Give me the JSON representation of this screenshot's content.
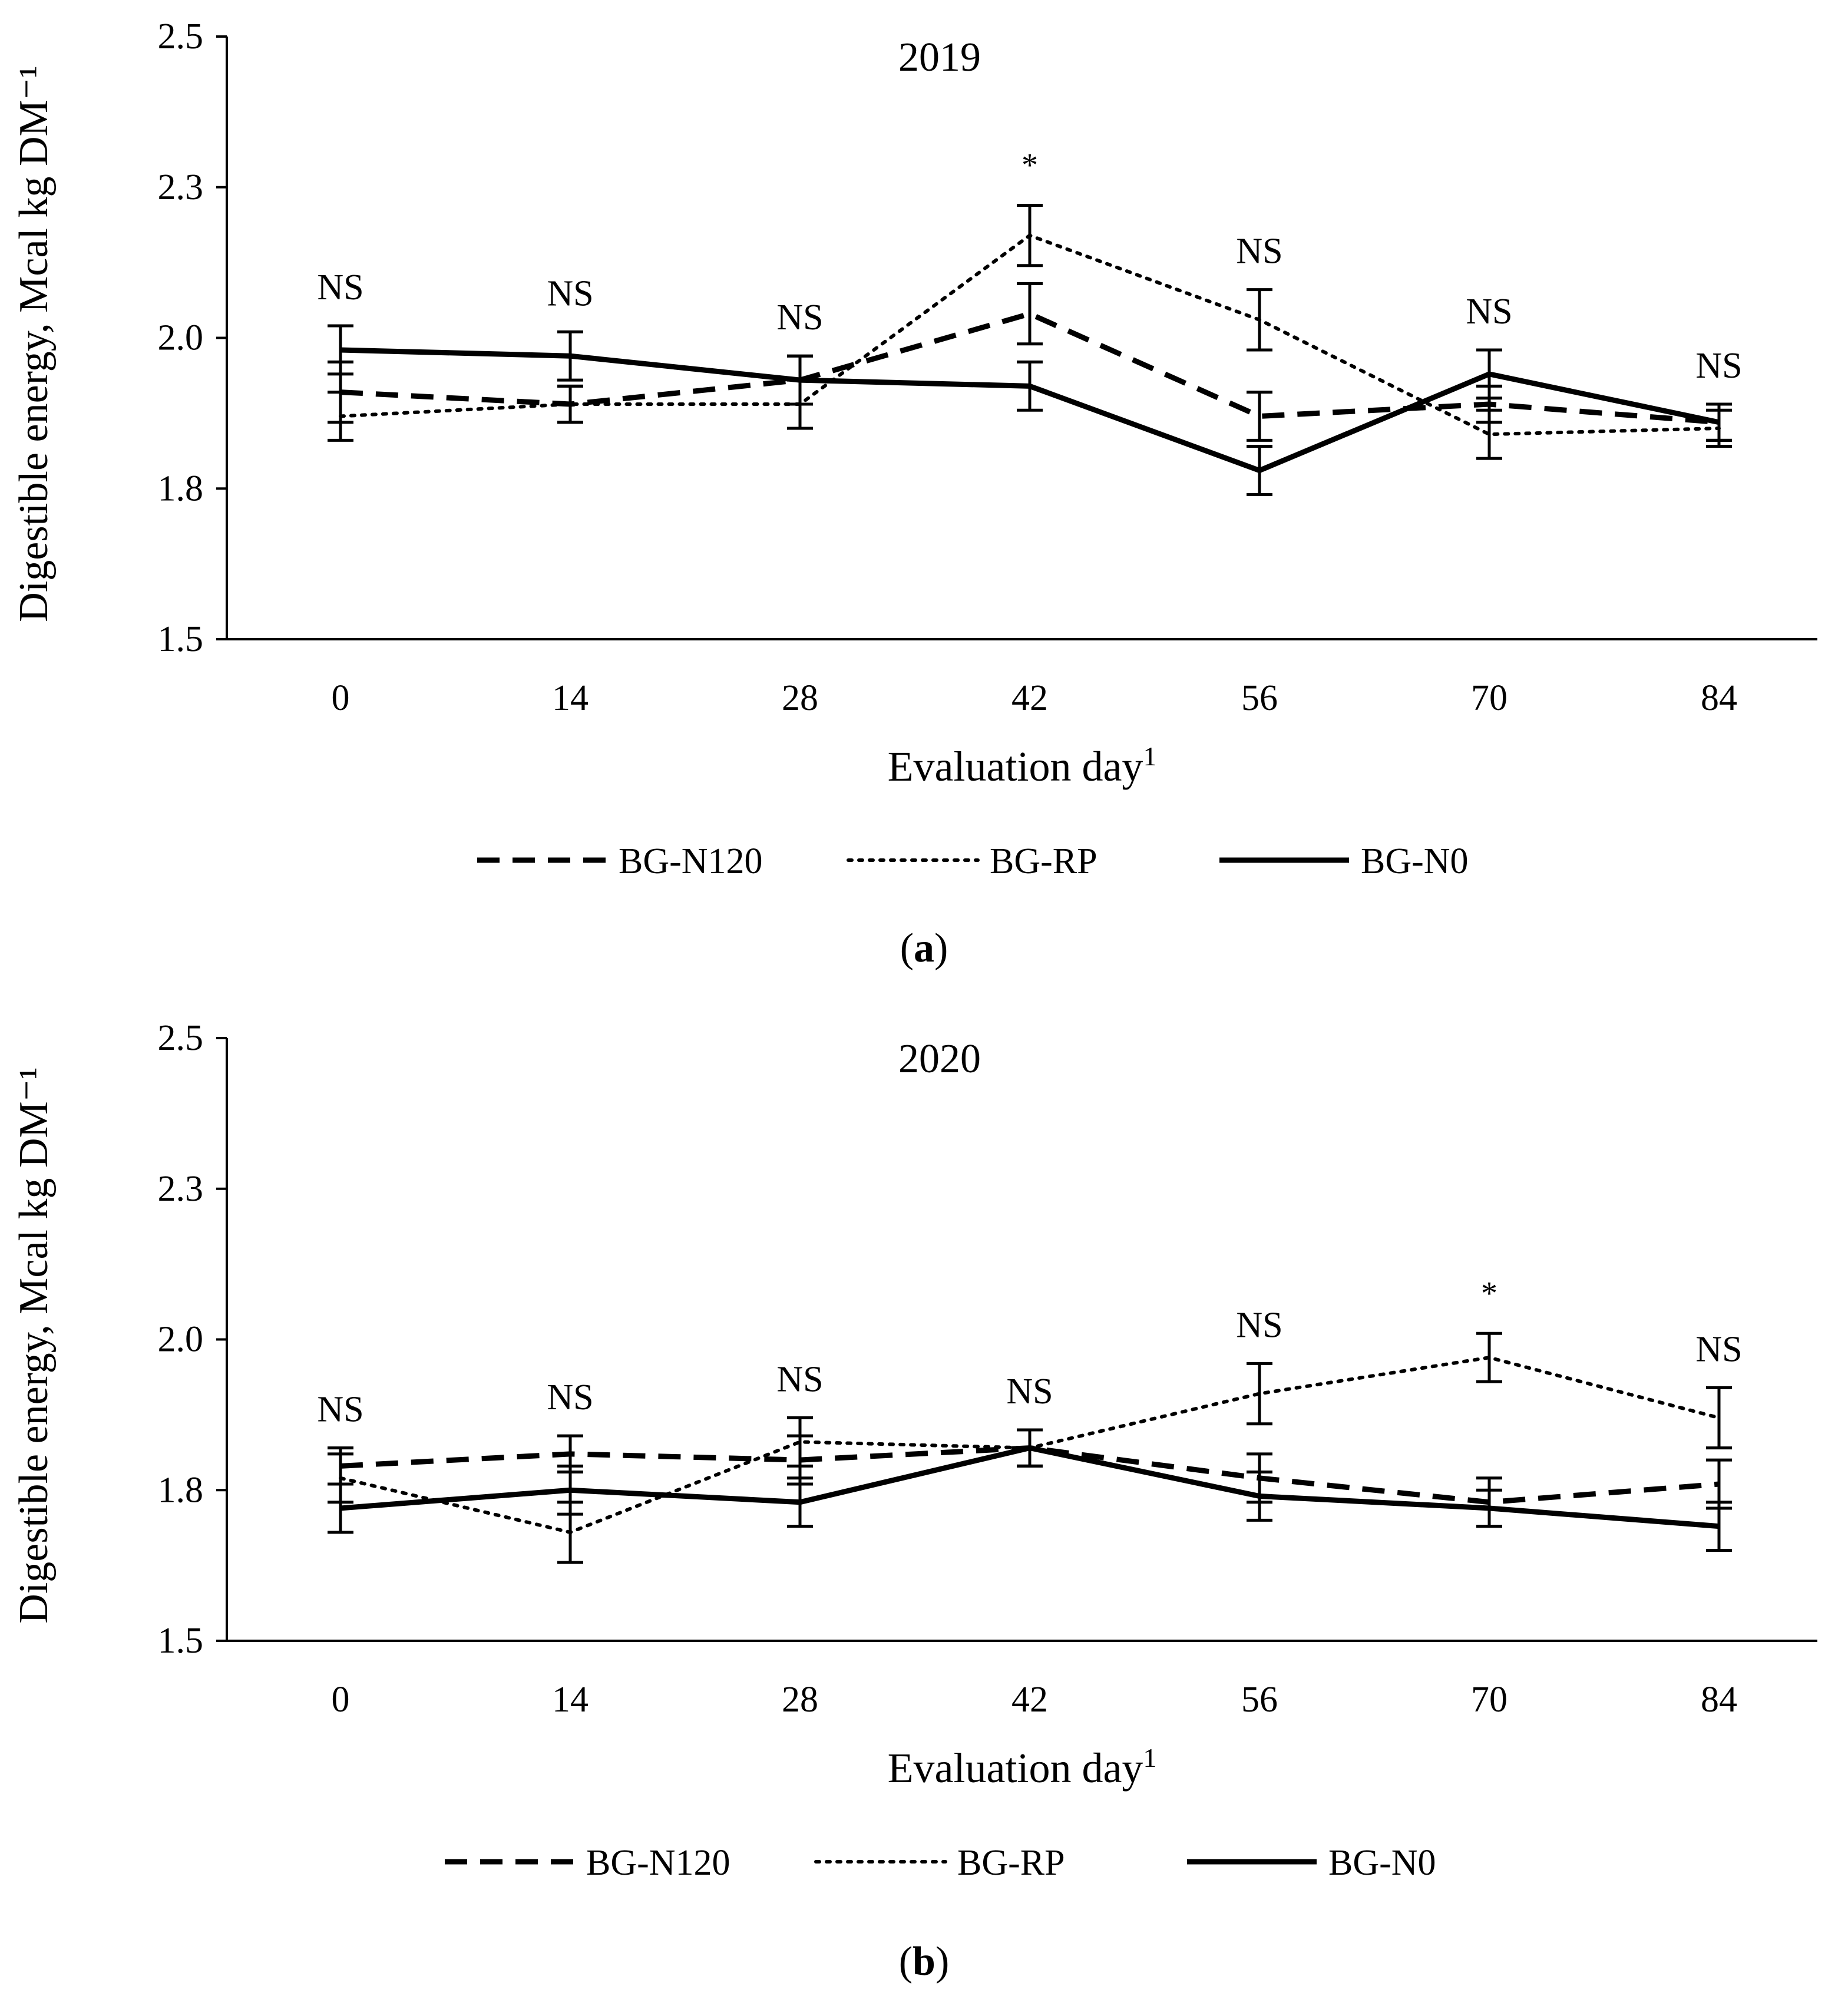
{
  "chart_data": [
    {
      "type": "line",
      "title": "2019",
      "ylabel": "Digestible energy,  Mcal kg DM⁻¹",
      "xlabel": "Evaluation day",
      "xlabel_superscript": "1",
      "ylim": [
        1.5,
        2.5
      ],
      "y_ticks": [
        "1.5",
        "1.8",
        "2.0",
        "2.3",
        "2.5"
      ],
      "y_tick_values": [
        1.5,
        1.75,
        2.0,
        2.25,
        2.5
      ],
      "categories": [
        "0",
        "14",
        "28",
        "42",
        "56",
        "70",
        "84"
      ],
      "annotations": [
        "NS",
        "NS",
        "NS",
        "*",
        "NS",
        "NS",
        "NS"
      ],
      "series": [
        {
          "name": "BG-N120",
          "style": "dashed",
          "values": [
            1.91,
            1.89,
            1.93,
            2.04,
            1.87,
            1.89,
            1.86
          ],
          "errors": [
            0.05,
            0.03,
            0.04,
            0.05,
            0.04,
            0.03,
            0.03
          ]
        },
        {
          "name": "BG-RP",
          "style": "dotted",
          "values": [
            1.87,
            1.89,
            1.89,
            2.17,
            2.03,
            1.84,
            1.85
          ],
          "errors": [
            0.04,
            0.03,
            0.04,
            0.05,
            0.05,
            0.04,
            0.03
          ]
        },
        {
          "name": "BG-N0",
          "style": "solid",
          "values": [
            1.98,
            1.97,
            1.93,
            1.92,
            1.78,
            1.94,
            1.86
          ],
          "errors": [
            0.04,
            0.04,
            0.04,
            0.04,
            0.04,
            0.04,
            0.03
          ]
        }
      ],
      "legend_position": "bottom",
      "caption_letter": "a"
    },
    {
      "type": "line",
      "title": "2020",
      "ylabel": "Digestible energy,  Mcal kg DM⁻¹",
      "xlabel": "Evaluation day",
      "xlabel_superscript": "1",
      "ylim": [
        1.5,
        2.5
      ],
      "y_ticks": [
        "1.5",
        "1.8",
        "2.0",
        "2.3",
        "2.5"
      ],
      "y_tick_values": [
        1.5,
        1.75,
        2.0,
        2.25,
        2.5
      ],
      "categories": [
        "0",
        "14",
        "28",
        "42",
        "56",
        "70",
        "84"
      ],
      "annotations": [
        "NS",
        "NS",
        "NS",
        "NS",
        "NS",
        "*",
        "NS"
      ],
      "series": [
        {
          "name": "BG-N120",
          "style": "dashed",
          "values": [
            1.79,
            1.81,
            1.8,
            1.82,
            1.77,
            1.73,
            1.76
          ],
          "errors": [
            0.03,
            0.03,
            0.04,
            0.03,
            0.04,
            0.04,
            0.04
          ]
        },
        {
          "name": "BG-RP",
          "style": "dotted",
          "values": [
            1.77,
            1.68,
            1.83,
            1.82,
            1.91,
            1.97,
            1.87
          ],
          "errors": [
            0.04,
            0.05,
            0.04,
            0.03,
            0.05,
            0.04,
            0.05
          ]
        },
        {
          "name": "BG-N0",
          "style": "solid",
          "values": [
            1.72,
            1.75,
            1.73,
            1.82,
            1.74,
            1.72,
            1.69
          ],
          "errors": [
            0.04,
            0.04,
            0.04,
            0.03,
            0.04,
            0.03,
            0.04
          ]
        }
      ],
      "legend_position": "bottom",
      "caption_letter": "b"
    }
  ]
}
